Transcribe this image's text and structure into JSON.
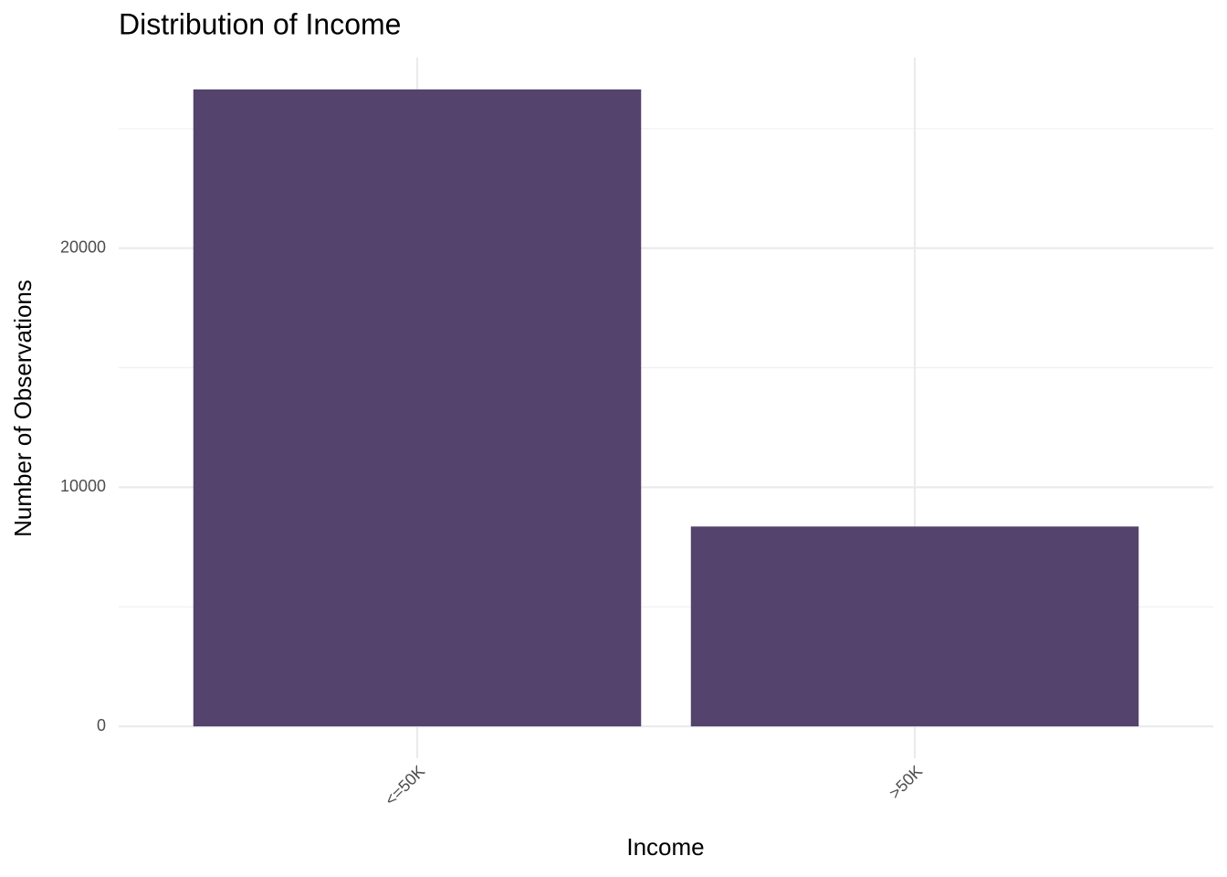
{
  "chart_data": {
    "type": "bar",
    "title": "Distribution of Income",
    "x_label": "Income",
    "y_label": "Number of Observations",
    "categories": [
      "<=50K",
      ">50K"
    ],
    "values": [
      26640,
      8360
    ],
    "color": "#54436d",
    "ylim": [
      -1332,
      27972
    ],
    "yticks": [
      0,
      10000,
      20000
    ],
    "minor_yticks": [
      5000,
      15000,
      25000
    ],
    "grid": true
  }
}
